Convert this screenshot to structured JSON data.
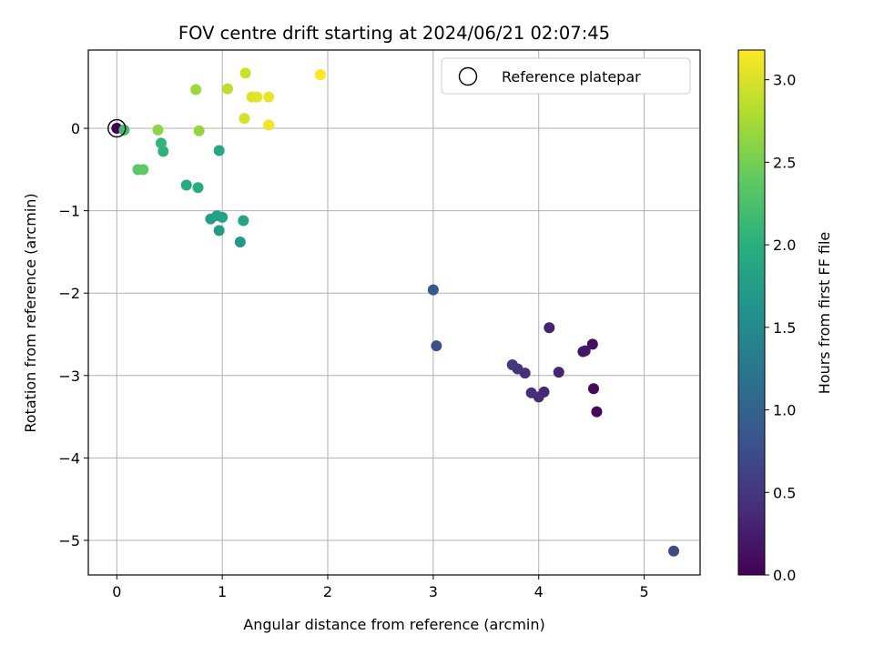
{
  "chart_data": {
    "type": "scatter",
    "title": "FOV centre drift starting at 2024/06/21 02:07:45",
    "xlabel": "Angular distance from reference (arcmin)",
    "ylabel": "Rotation from reference (arcmin)",
    "xlim": [
      -0.27,
      5.53
    ],
    "ylim": [
      -5.42,
      0.95
    ],
    "xticks": [
      0,
      1,
      2,
      3,
      4,
      5
    ],
    "yticks": [
      0,
      -1,
      -2,
      -3,
      -4,
      -5
    ],
    "grid": true,
    "legend": {
      "position": "top-right",
      "entries": [
        "Reference platepar"
      ]
    },
    "colorbar": {
      "label": "Hours from first FF file",
      "range": [
        0,
        3.18
      ],
      "ticks": [
        "0.0",
        "0.5",
        "1.0",
        "1.5",
        "2.0",
        "2.5",
        "3.0"
      ],
      "colormap": "viridis"
    },
    "reference_point": {
      "x": 0,
      "y": 0
    },
    "points": [
      {
        "x": 0.0,
        "y": 0.0,
        "h": 0.0
      },
      {
        "x": 4.55,
        "y": -3.44,
        "h": 0.05
      },
      {
        "x": 4.52,
        "y": -3.16,
        "h": 0.08
      },
      {
        "x": 4.51,
        "y": -2.62,
        "h": 0.12
      },
      {
        "x": 4.42,
        "y": -2.71,
        "h": 0.16
      },
      {
        "x": 4.44,
        "y": -2.7,
        "h": 0.2
      },
      {
        "x": 4.1,
        "y": -2.42,
        "h": 0.3
      },
      {
        "x": 4.19,
        "y": -2.96,
        "h": 0.33
      },
      {
        "x": 4.05,
        "y": -3.2,
        "h": 0.36
      },
      {
        "x": 4.0,
        "y": -3.26,
        "h": 0.38
      },
      {
        "x": 3.93,
        "y": -3.21,
        "h": 0.4
      },
      {
        "x": 3.87,
        "y": -2.97,
        "h": 0.43
      },
      {
        "x": 3.8,
        "y": -2.92,
        "h": 0.46
      },
      {
        "x": 3.75,
        "y": -2.87,
        "h": 0.5
      },
      {
        "x": 5.28,
        "y": -5.13,
        "h": 0.7
      },
      {
        "x": 3.03,
        "y": -2.64,
        "h": 0.8
      },
      {
        "x": 3.0,
        "y": -1.96,
        "h": 0.9
      },
      {
        "x": 1.17,
        "y": -1.38,
        "h": 1.72
      },
      {
        "x": 0.97,
        "y": -1.24,
        "h": 1.74
      },
      {
        "x": 0.89,
        "y": -1.1,
        "h": 1.78
      },
      {
        "x": 0.95,
        "y": -1.06,
        "h": 1.8
      },
      {
        "x": 1.0,
        "y": -1.08,
        "h": 1.82
      },
      {
        "x": 1.2,
        "y": -1.12,
        "h": 1.84
      },
      {
        "x": 0.97,
        "y": -0.27,
        "h": 1.88
      },
      {
        "x": 0.66,
        "y": -0.69,
        "h": 1.95
      },
      {
        "x": 0.77,
        "y": -0.72,
        "h": 1.98
      },
      {
        "x": 0.44,
        "y": -0.28,
        "h": 2.03
      },
      {
        "x": 0.42,
        "y": -0.18,
        "h": 2.07
      },
      {
        "x": 0.07,
        "y": -0.02,
        "h": 2.18
      },
      {
        "x": 0.2,
        "y": -0.5,
        "h": 2.35
      },
      {
        "x": 0.25,
        "y": -0.5,
        "h": 2.38
      },
      {
        "x": 0.39,
        "y": -0.02,
        "h": 2.62
      },
      {
        "x": 0.78,
        "y": -0.03,
        "h": 2.66
      },
      {
        "x": 0.75,
        "y": 0.47,
        "h": 2.7
      },
      {
        "x": 1.05,
        "y": 0.48,
        "h": 2.86
      },
      {
        "x": 1.22,
        "y": 0.67,
        "h": 2.92
      },
      {
        "x": 1.21,
        "y": 0.12,
        "h": 2.98
      },
      {
        "x": 1.28,
        "y": 0.38,
        "h": 3.02
      },
      {
        "x": 1.33,
        "y": 0.38,
        "h": 3.05
      },
      {
        "x": 1.44,
        "y": 0.38,
        "h": 3.08
      },
      {
        "x": 1.44,
        "y": 0.04,
        "h": 3.12
      },
      {
        "x": 1.93,
        "y": 0.65,
        "h": 3.16
      }
    ]
  }
}
